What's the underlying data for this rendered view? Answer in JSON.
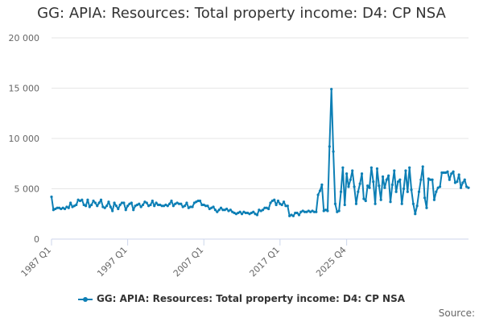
{
  "chart_data": {
    "type": "line",
    "title": "GG: APIA: Resources: Total property income: D4: CP NSA",
    "xlabel": "",
    "ylabel": "",
    "ylim": [
      0,
      20000
    ],
    "grid": "horizontal",
    "legend_position": "bottom",
    "y_ticks": [
      0,
      5000,
      10000,
      15000,
      20000
    ],
    "y_tick_labels": [
      "0",
      "5 000",
      "10 000",
      "15 000",
      "20 000"
    ],
    "x_tick_labels": [
      "1987 Q1",
      "1997 Q1",
      "2007 Q1",
      "2017 Q1",
      "2025 Q4"
    ],
    "x_start": "1987 Q1",
    "x_end": "2025 Q4",
    "series": [
      {
        "name": "GG: APIA: Resources: Total property income: D4: CP NSA",
        "color": "#0d7fb5",
        "values": [
          4200,
          2900,
          3000,
          3100,
          3100,
          3000,
          3100,
          3000,
          3200,
          3100,
          3600,
          3200,
          3300,
          3400,
          3900,
          3800,
          3900,
          3400,
          3300,
          3900,
          3200,
          3400,
          3800,
          3600,
          3300,
          3600,
          3900,
          3200,
          3100,
          3300,
          3700,
          3200,
          2800,
          3600,
          3300,
          3000,
          3400,
          3600,
          3600,
          2900,
          3300,
          3500,
          3600,
          2900,
          3300,
          3400,
          3500,
          3200,
          3400,
          3700,
          3600,
          3300,
          3400,
          3800,
          3300,
          3600,
          3400,
          3400,
          3300,
          3300,
          3400,
          3300,
          3500,
          3800,
          3300,
          3500,
          3600,
          3500,
          3500,
          3200,
          3300,
          3600,
          3100,
          3200,
          3200,
          3600,
          3700,
          3800,
          3800,
          3400,
          3400,
          3300,
          3300,
          3000,
          3100,
          3200,
          2900,
          2700,
          2900,
          3100,
          2900,
          2900,
          3000,
          2800,
          2900,
          2700,
          2600,
          2500,
          2600,
          2700,
          2500,
          2700,
          2600,
          2600,
          2500,
          2600,
          2700,
          2500,
          2400,
          2900,
          2800,
          2900,
          3100,
          3100,
          3000,
          3600,
          3800,
          3900,
          3400,
          3800,
          3500,
          3400,
          3700,
          3300,
          3300,
          2300,
          2400,
          2300,
          2600,
          2600,
          2400,
          2700,
          2800,
          2700,
          2700,
          2800,
          2700,
          2800,
          2700,
          2700,
          4400,
          4800,
          5400,
          2800,
          2900,
          2800,
          9200,
          14900,
          8700,
          3500,
          2700,
          2800,
          4700,
          7100,
          3400,
          6500,
          5200,
          5900,
          6800,
          5200,
          3500,
          4700,
          5500,
          6500,
          4000,
          3800,
          5300,
          5100,
          7100,
          5700,
          3500,
          7000,
          5300,
          3900,
          6200,
          5100,
          5900,
          6300,
          3700,
          5400,
          6800,
          4700,
          5700,
          5900,
          3500,
          5000,
          6800,
          4700,
          7100,
          4900,
          3500,
          2500,
          3300,
          4700,
          5900,
          7200,
          4100,
          3100,
          6000,
          5900,
          5900,
          3900,
          4700,
          5100,
          5200,
          6600,
          6600,
          6600,
          6700,
          5900,
          6500,
          6700,
          5600,
          5700,
          6400,
          5100,
          5600,
          5900,
          5200,
          5100
        ]
      }
    ]
  },
  "footer": {
    "source_label": "Source:"
  }
}
